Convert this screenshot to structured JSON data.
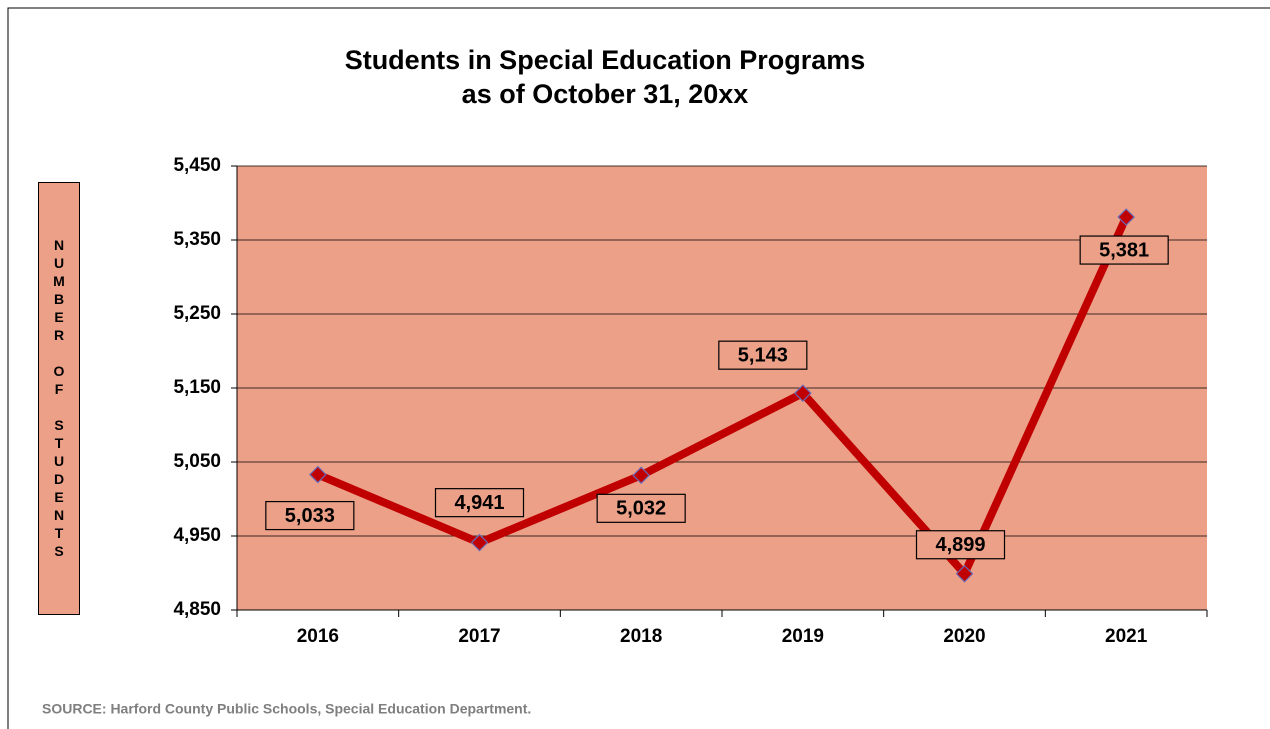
{
  "chart_data": {
    "type": "line",
    "title": "Students in Special Education Programs",
    "subtitle": "as of October 31, 20xx",
    "y_label": "NUMBER OF STUDENTS",
    "source": "SOURCE:  Harford County Public Schools, Special Education Department.",
    "categories": [
      "2016",
      "2017",
      "2018",
      "2019",
      "2020",
      "2021"
    ],
    "series": [
      {
        "name": "Students",
        "color": "#c00000",
        "values": [
          5033,
          4941,
          5032,
          5143,
          4899,
          5381
        ],
        "value_labels": [
          "5,033",
          "4,941",
          "5,032",
          "5,143",
          "4,899",
          "5,381"
        ]
      }
    ],
    "ylim": [
      4850,
      5450
    ],
    "yticks": [
      {
        "value": 4850,
        "label": "4,850"
      },
      {
        "value": 4950,
        "label": "4,950"
      },
      {
        "value": 5050,
        "label": "5,050"
      },
      {
        "value": 5150,
        "label": "5,150"
      },
      {
        "value": 5250,
        "label": "5,250"
      },
      {
        "value": 5350,
        "label": "5,350"
      },
      {
        "value": 5450,
        "label": "5,450"
      }
    ],
    "grid": true,
    "plot_background": "#eca088"
  }
}
